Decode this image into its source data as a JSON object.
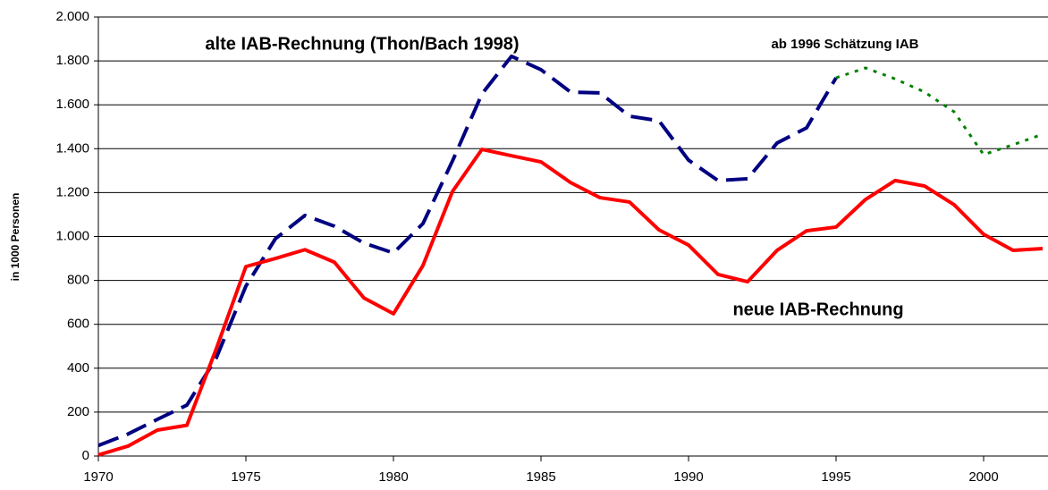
{
  "chart_data": {
    "type": "line",
    "y_label": "in 1000 Personen",
    "x": [
      1970,
      1971,
      1972,
      1973,
      1974,
      1975,
      1976,
      1977,
      1978,
      1979,
      1980,
      1981,
      1982,
      1983,
      1984,
      1985,
      1986,
      1987,
      1988,
      1989,
      1990,
      1991,
      1992,
      1993,
      1994,
      1995,
      1996,
      1997,
      1998,
      1999,
      2000,
      2001,
      2002
    ],
    "series": [
      {
        "name": "alte IAB-Rechnung (Thon/Bach 1998)",
        "color": "#000080",
        "style": "dashed",
        "values": [
          48,
          100,
          167,
          232,
          448,
          774,
          990,
          1096,
          1047,
          970,
          925,
          1059,
          1344,
          1650,
          1821,
          1760,
          1658,
          1654,
          1548,
          1527,
          1348,
          1255,
          1263,
          1426,
          1495,
          1723,
          null,
          null,
          null,
          null,
          null,
          null,
          null
        ]
      },
      {
        "name": "ab 1996 Schätzung IAB",
        "color": "#008000",
        "style": "dotted",
        "values": [
          null,
          null,
          null,
          null,
          null,
          null,
          null,
          null,
          null,
          null,
          null,
          null,
          null,
          null,
          null,
          null,
          null,
          null,
          null,
          null,
          null,
          null,
          null,
          null,
          null,
          1723,
          1768,
          1718,
          1658,
          1568,
          1373,
          1418,
          1466
        ]
      },
      {
        "name": "neue IAB-Rechnung",
        "color": "#ff0000",
        "style": "solid",
        "values": [
          5,
          45,
          118,
          140,
          490,
          863,
          900,
          940,
          883,
          720,
          648,
          868,
          1205,
          1397,
          1368,
          1340,
          1246,
          1177,
          1157,
          1030,
          961,
          827,
          794,
          937,
          1026,
          1043,
          1169,
          1255,
          1230,
          1145,
          1010,
          937,
          945
        ]
      }
    ],
    "xlim": [
      1970,
      2002
    ],
    "xticks": [
      1970,
      1975,
      1980,
      1985,
      1990,
      1995,
      2000
    ],
    "ylim": [
      0,
      2000
    ],
    "yticks": [
      0,
      200,
      400,
      600,
      800,
      {
        "value": 1000,
        "label": "1.000"
      },
      {
        "value": 1200,
        "label": "1.200"
      },
      {
        "value": 1400,
        "label": "1.400"
      },
      {
        "value": 1600,
        "label": "1.600"
      },
      {
        "value": 1800,
        "label": "1.800"
      },
      {
        "value": 2000,
        "label": "2.000"
      }
    ],
    "grid": true
  }
}
